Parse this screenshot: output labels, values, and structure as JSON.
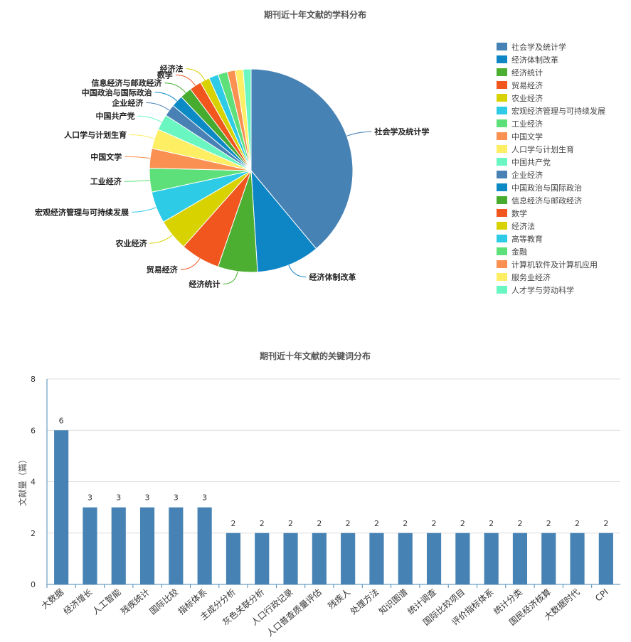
{
  "chart_data": [
    {
      "type": "pie",
      "title": "期刊近十年文献的学科分布",
      "legend_position": "right",
      "slices": [
        {
          "label": "社会学及统计学",
          "value": 31,
          "color": "#4682b4"
        },
        {
          "label": "经济体制改革",
          "value": 8,
          "color": "#0e86c6"
        },
        {
          "label": "经济统计",
          "value": 5,
          "color": "#4daf32"
        },
        {
          "label": "贸易经济",
          "value": 5,
          "color": "#f0561e"
        },
        {
          "label": "农业经济",
          "value": 4,
          "color": "#d7d200"
        },
        {
          "label": "宏观经济管理与可持续发展",
          "value": 4,
          "color": "#2dcbe6"
        },
        {
          "label": "工业经济",
          "value": 3,
          "color": "#5de079"
        },
        {
          "label": "中国文学",
          "value": 2.5,
          "color": "#fa9152"
        },
        {
          "label": "人口学与计划生育",
          "value": 2.5,
          "color": "#fdee64"
        },
        {
          "label": "中国共产党",
          "value": 2,
          "color": "#6af6c0"
        },
        {
          "label": "企业经济",
          "value": 1.5,
          "color": "#4a81b4"
        },
        {
          "label": "中国政治与国际政治",
          "value": 1.5,
          "color": "#0c8ac6"
        },
        {
          "label": "信息经济与邮政经济",
          "value": 1.5,
          "color": "#46ab2f"
        },
        {
          "label": "数学",
          "value": 1.5,
          "color": "#f0561e"
        },
        {
          "label": "经济法",
          "value": 1.2,
          "color": "#d7d200"
        },
        {
          "label": "高等教育",
          "value": 1.2,
          "color": "#2dcbe6"
        },
        {
          "label": "金融",
          "value": 1.2,
          "color": "#5de079"
        },
        {
          "label": "计算机软件及计算机应用",
          "value": 1,
          "color": "#fa9152"
        },
        {
          "label": "服务业经济",
          "value": 1,
          "color": "#fdee64"
        },
        {
          "label": "人才学与劳动科学",
          "value": 1,
          "color": "#6af6c0"
        }
      ]
    },
    {
      "type": "bar",
      "title": "期刊近十年文献的关键词分布",
      "ylabel": "文献量（篇）",
      "ylim": [
        0,
        8
      ],
      "yticks": [
        0,
        2,
        4,
        6,
        8
      ],
      "grid": true,
      "color": "#4682b4",
      "categories": [
        "大数据",
        "经济增长",
        "人工智能",
        "残疾统计",
        "国际比较",
        "指标体系",
        "主成分分析",
        "灰色关联分析",
        "人口行政记录",
        "人口普查质量评估",
        "残疾人",
        "处理方法",
        "知识图谱",
        "统计调查",
        "国际比较项目",
        "评价指标体系",
        "统计分类",
        "国民经济核算",
        "大数据时代",
        "CPI"
      ],
      "values": [
        6,
        3,
        3,
        3,
        3,
        3,
        2,
        2,
        2,
        2,
        2,
        2,
        2,
        2,
        2,
        2,
        2,
        2,
        2,
        2
      ]
    }
  ]
}
